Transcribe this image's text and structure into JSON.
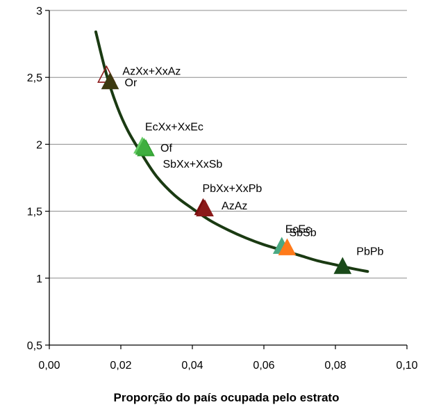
{
  "chart_data": {
    "type": "scatter",
    "xlabel": "Proporção do país ocupada pelo estrato",
    "ylabel": "",
    "xlim": [
      0.0,
      0.1
    ],
    "ylim": [
      0.5,
      3.0
    ],
    "x_ticks": [
      0.0,
      0.02,
      0.04,
      0.06,
      0.08,
      0.1
    ],
    "x_tick_labels": [
      "0,00",
      "0,02",
      "0,04",
      "0,06",
      "0,08",
      "0,10"
    ],
    "y_ticks": [
      0.5,
      1.0,
      1.5,
      2.0,
      2.5,
      3.0
    ],
    "y_tick_labels": [
      "0,5",
      "1",
      "1,5",
      "2",
      "2,5",
      "3"
    ],
    "grid": "horizontal",
    "legend": "none",
    "fitted_curve": {
      "color": "#1a3a12",
      "x": [
        0.013,
        0.016,
        0.019,
        0.022,
        0.026,
        0.03,
        0.035,
        0.04,
        0.045,
        0.05,
        0.055,
        0.06,
        0.065,
        0.07,
        0.075,
        0.08,
        0.085,
        0.089
      ],
      "y": [
        2.84,
        2.52,
        2.28,
        2.1,
        1.92,
        1.76,
        1.62,
        1.52,
        1.43,
        1.36,
        1.3,
        1.25,
        1.21,
        1.17,
        1.13,
        1.1,
        1.07,
        1.05
      ]
    },
    "points": [
      {
        "label": "AzXx+XxAz",
        "x": 0.016,
        "y": 2.52,
        "color": "#8b1a1a",
        "filled": false
      },
      {
        "label": "Or",
        "x": 0.017,
        "y": 2.47,
        "color": "#3d3a10",
        "filled": true
      },
      {
        "label": "EcXx+XxEc",
        "x": 0.026,
        "y": 1.99,
        "color": "#66cc66",
        "filled": true
      },
      {
        "label": "Of",
        "x": 0.027,
        "y": 1.97,
        "color": "#2e9e2e",
        "filled": true
      },
      {
        "label": "SbXx+XxSb",
        "x": 0.0265,
        "y": 1.98,
        "color": "#3fae3f",
        "filled": true
      },
      {
        "label": "PbXx+XxPb",
        "x": 0.043,
        "y": 1.53,
        "color": "#7a0f0f",
        "filled": true
      },
      {
        "label": "AzAz",
        "x": 0.0435,
        "y": 1.52,
        "color": "#8b1a1a",
        "filled": true
      },
      {
        "label": "EcEc",
        "x": 0.065,
        "y": 1.24,
        "color": "#4aa882",
        "filled": true
      },
      {
        "label": "SbSb",
        "x": 0.0665,
        "y": 1.23,
        "color": "#ff7a1a",
        "filled": true
      },
      {
        "label": "PbPb",
        "x": 0.082,
        "y": 1.09,
        "color": "#1a4a1a",
        "filled": true
      }
    ]
  }
}
